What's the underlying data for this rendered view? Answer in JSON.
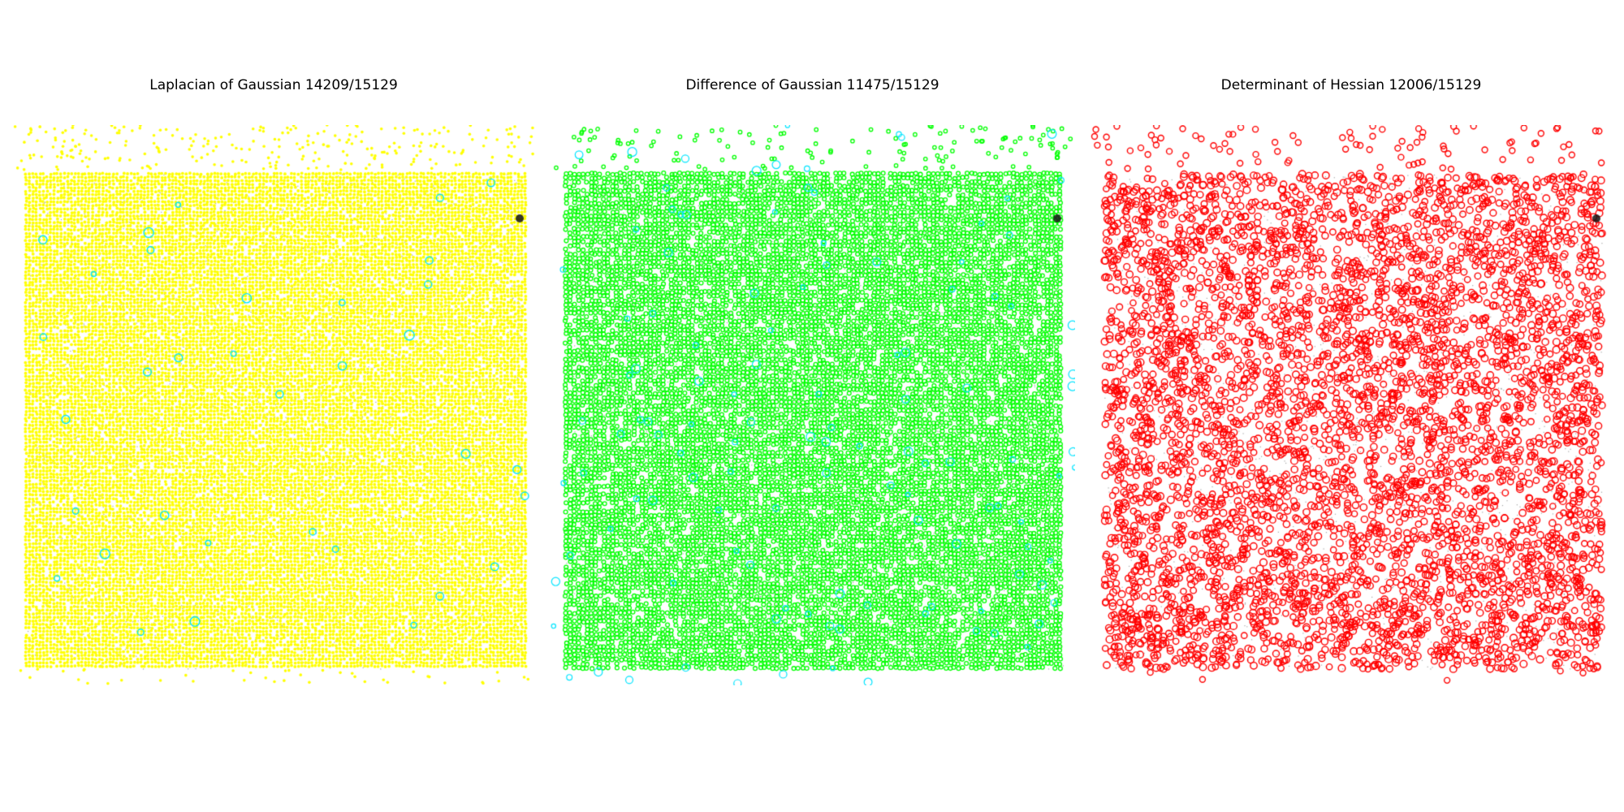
{
  "figure": {
    "panels": [
      {
        "id": "log",
        "title": "Laplacian of Gaussian 14209/15129",
        "marker_color": "#ffff00",
        "accent_color": "#00e5ff",
        "style": "dense-dots"
      },
      {
        "id": "dog",
        "title": "Difference of Gaussian 11475/15129",
        "marker_color": "#00ff00",
        "accent_color": "#00e5ff",
        "style": "rings"
      },
      {
        "id": "doh",
        "title": "Determinant of Hessian 12006/15129",
        "marker_color": "#ff0000",
        "accent_color": "#ff0000",
        "style": "large-rings"
      }
    ]
  }
}
